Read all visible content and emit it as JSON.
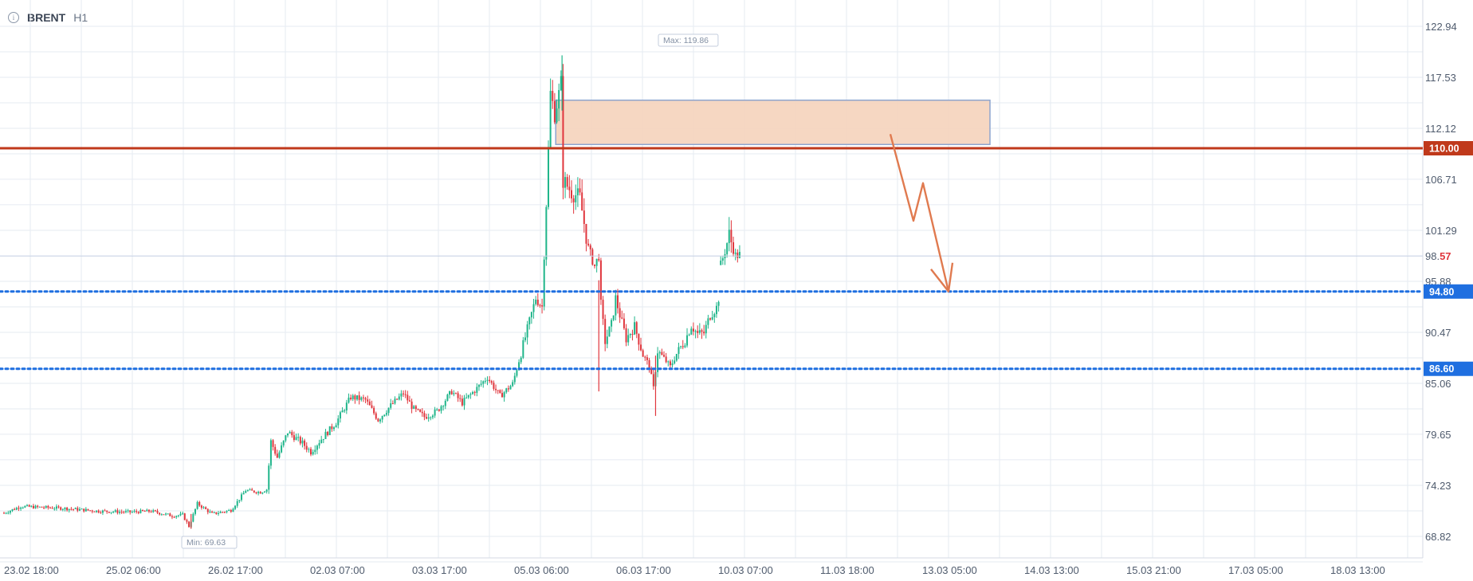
{
  "header": {
    "symbol": "BRENT",
    "timeframe": "H1",
    "info_icon": "info-icon"
  },
  "chart_data": {
    "type": "candlestick",
    "symbol": "BRENT",
    "timeframe": "H1",
    "y_ticks": [
      122.94,
      117.53,
      112.12,
      106.71,
      101.29,
      95.88,
      90.47,
      85.06,
      79.65,
      74.23,
      68.82
    ],
    "x_ticks": [
      "23.02 18:00",
      "25.02 06:00",
      "26.02 17:00",
      "02.03 07:00",
      "03.03 17:00",
      "05.03 06:00",
      "06.03 17:00",
      "10.03 07:00",
      "11.03 18:00",
      "13.03 05:00",
      "14.03 13:00",
      "15.03 21:00",
      "17.03 05:00",
      "18.03 13:00"
    ],
    "current_price": {
      "main": "98.",
      "frac": "57",
      "value": 98.57
    },
    "max_label": "Max: 119.86",
    "min_label": "Min: 69.63",
    "levels": [
      {
        "value": 110.0,
        "label": "110.00",
        "style": "solid",
        "color": "#c0391b"
      },
      {
        "value": 94.8,
        "label": "94.80",
        "style": "dotted",
        "color": "#1f6fe0"
      },
      {
        "value": 86.6,
        "label": "86.60",
        "style": "dotted",
        "color": "#1f6fe0"
      }
    ],
    "zone": {
      "y_from": 110.4,
      "y_to": 115.1,
      "fill": "#f5d3bb",
      "border": "#8ea5cf"
    },
    "projection": {
      "path": [
        111.5,
        102.3,
        106.3,
        94.8
      ],
      "color": "#e07a4f"
    },
    "colors": {
      "up": "#1fb58a",
      "down": "#e0363d",
      "grid": "#e6ebf2"
    },
    "series_anchors": [
      [
        0,
        71.3
      ],
      [
        8,
        72.0
      ],
      [
        28,
        71.8
      ],
      [
        45,
        71.5
      ],
      [
        60,
        71.4
      ],
      [
        70,
        71.5
      ],
      [
        80,
        71.0
      ],
      [
        85,
        71.1
      ],
      [
        88,
        69.9
      ],
      [
        92,
        72.3
      ],
      [
        99,
        71.2
      ],
      [
        108,
        71.6
      ],
      [
        115,
        73.7
      ],
      [
        122,
        73.5
      ],
      [
        125,
        73.8
      ],
      [
        127,
        78.9
      ],
      [
        130,
        77.2
      ],
      [
        135,
        79.9
      ],
      [
        142,
        78.7
      ],
      [
        146,
        77.8
      ],
      [
        150,
        78.9
      ],
      [
        158,
        80.9
      ],
      [
        165,
        83.6
      ],
      [
        172,
        83.3
      ],
      [
        178,
        81.2
      ],
      [
        184,
        82.7
      ],
      [
        190,
        84.0
      ],
      [
        195,
        82.3
      ],
      [
        200,
        81.5
      ],
      [
        206,
        82.1
      ],
      [
        213,
        84.2
      ],
      [
        218,
        83.0
      ],
      [
        224,
        84.3
      ],
      [
        230,
        85.7
      ],
      [
        236,
        83.7
      ],
      [
        242,
        85.0
      ],
      [
        246,
        88.3
      ],
      [
        250,
        91.6
      ],
      [
        253,
        94.1
      ],
      [
        256,
        93.2
      ],
      [
        259,
        109.8
      ],
      [
        260,
        115.8
      ],
      [
        262,
        113.7
      ],
      [
        264,
        115.7
      ],
      [
        265,
        116.9
      ],
      [
        266,
        106.6
      ],
      [
        270,
        105.4
      ],
      [
        274,
        104.7
      ],
      [
        278,
        99.4
      ],
      [
        281,
        97.5
      ],
      [
        283,
        98.6
      ],
      [
        284,
        93.4
      ],
      [
        286,
        89.5
      ],
      [
        289,
        91.3
      ],
      [
        291,
        94.1
      ],
      [
        293,
        92.3
      ],
      [
        296,
        89.8
      ],
      [
        300,
        91.1
      ],
      [
        304,
        88.1
      ],
      [
        307,
        86.9
      ],
      [
        309,
        84.5
      ],
      [
        311,
        88.5
      ],
      [
        314,
        87.7
      ],
      [
        317,
        86.8
      ],
      [
        320,
        88.2
      ],
      [
        324,
        89.6
      ],
      [
        327,
        91.2
      ],
      [
        330,
        90.3
      ],
      [
        333,
        90.4
      ],
      [
        336,
        92.3
      ],
      [
        339,
        93.1
      ],
      [
        340,
        94.1
      ]
    ],
    "series_anchors_gap": [
      [
        341,
        97.6
      ],
      [
        343,
        99.1
      ],
      [
        345,
        100.8
      ],
      [
        348,
        98.6
      ],
      [
        350,
        98.7
      ]
    ]
  }
}
